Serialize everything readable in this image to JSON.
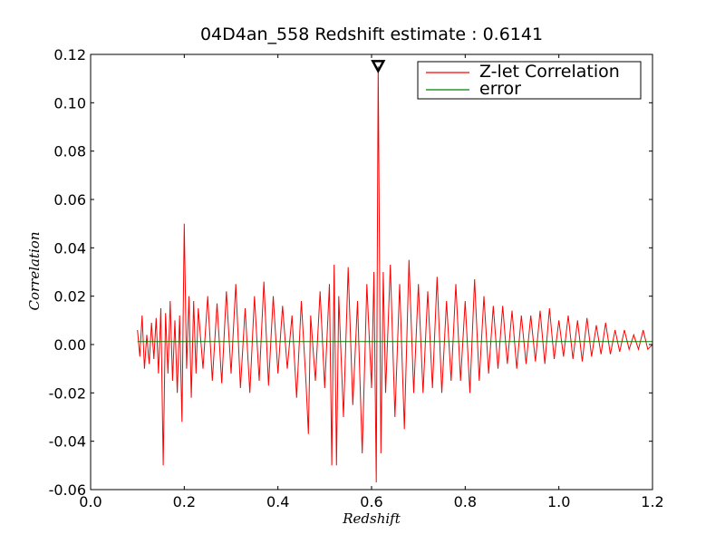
{
  "chart_data": {
    "type": "line",
    "title": "04D4an_558 Redshift estimate : 0.6141",
    "xlabel": "Redshift",
    "ylabel": "Correlation",
    "xlim": [
      0.0,
      1.2
    ],
    "ylim": [
      -0.06,
      0.12
    ],
    "xticks": [
      0.0,
      0.2,
      0.4,
      0.6,
      0.8,
      1.0,
      1.2
    ],
    "xtick_labels": [
      "0.0",
      "0.2",
      "0.4",
      "0.6",
      "0.8",
      "1.0",
      "1.2"
    ],
    "yticks": [
      -0.06,
      -0.04,
      -0.02,
      0.0,
      0.02,
      0.04,
      0.06,
      0.08,
      0.1,
      0.12
    ],
    "ytick_labels": [
      "-0.06",
      "-0.04",
      "-0.02",
      "0.00",
      "0.02",
      "0.04",
      "0.06",
      "0.08",
      "0.10",
      "0.12"
    ],
    "grid": false,
    "legend_position": "top-right",
    "series": [
      {
        "name": "Z-let Correlation",
        "color": "#ff0000",
        "x": [
          0.1,
          0.105,
          0.11,
          0.115,
          0.12,
          0.125,
          0.13,
          0.135,
          0.14,
          0.145,
          0.15,
          0.155,
          0.16,
          0.165,
          0.17,
          0.175,
          0.18,
          0.185,
          0.19,
          0.195,
          0.2,
          0.205,
          0.21,
          0.215,
          0.22,
          0.225,
          0.23,
          0.24,
          0.25,
          0.26,
          0.27,
          0.28,
          0.29,
          0.3,
          0.31,
          0.32,
          0.33,
          0.34,
          0.35,
          0.36,
          0.37,
          0.38,
          0.39,
          0.4,
          0.41,
          0.42,
          0.43,
          0.44,
          0.45,
          0.46,
          0.465,
          0.47,
          0.48,
          0.49,
          0.5,
          0.51,
          0.515,
          0.52,
          0.525,
          0.53,
          0.54,
          0.55,
          0.56,
          0.57,
          0.58,
          0.59,
          0.6,
          0.605,
          0.61,
          0.6141,
          0.62,
          0.625,
          0.63,
          0.64,
          0.65,
          0.66,
          0.67,
          0.68,
          0.69,
          0.7,
          0.71,
          0.72,
          0.73,
          0.74,
          0.75,
          0.76,
          0.77,
          0.78,
          0.79,
          0.8,
          0.81,
          0.82,
          0.83,
          0.84,
          0.85,
          0.86,
          0.87,
          0.88,
          0.89,
          0.9,
          0.91,
          0.92,
          0.93,
          0.94,
          0.95,
          0.96,
          0.97,
          0.98,
          0.99,
          1.0,
          1.01,
          1.02,
          1.03,
          1.04,
          1.05,
          1.06,
          1.07,
          1.08,
          1.09,
          1.1,
          1.11,
          1.12,
          1.13,
          1.14,
          1.15,
          1.16,
          1.17,
          1.18,
          1.19,
          1.2
        ],
        "values": [
          0.006,
          -0.005,
          0.012,
          -0.01,
          0.004,
          -0.008,
          0.009,
          -0.006,
          0.011,
          -0.012,
          0.015,
          -0.05,
          0.013,
          -0.012,
          0.018,
          -0.015,
          0.01,
          -0.02,
          0.012,
          -0.032,
          0.05,
          -0.01,
          0.02,
          -0.022,
          0.018,
          -0.012,
          0.015,
          -0.01,
          0.02,
          -0.015,
          0.017,
          -0.016,
          0.022,
          -0.012,
          0.025,
          -0.018,
          0.015,
          -0.02,
          0.02,
          -0.015,
          0.026,
          -0.017,
          0.02,
          -0.012,
          0.016,
          -0.01,
          0.012,
          -0.022,
          0.018,
          -0.016,
          -0.037,
          0.012,
          -0.015,
          0.022,
          -0.018,
          0.025,
          -0.05,
          0.033,
          -0.05,
          0.02,
          -0.03,
          0.032,
          -0.025,
          0.018,
          -0.045,
          0.025,
          -0.018,
          0.03,
          -0.057,
          0.115,
          -0.045,
          0.03,
          -0.02,
          0.033,
          -0.03,
          0.025,
          -0.035,
          0.035,
          -0.02,
          0.025,
          -0.02,
          0.022,
          -0.018,
          0.028,
          -0.02,
          0.018,
          -0.015,
          0.025,
          -0.015,
          0.018,
          -0.02,
          0.027,
          -0.015,
          0.02,
          -0.012,
          0.016,
          -0.01,
          0.016,
          -0.008,
          0.014,
          -0.01,
          0.012,
          -0.008,
          0.012,
          -0.007,
          0.014,
          -0.008,
          0.015,
          -0.006,
          0.01,
          -0.005,
          0.012,
          -0.006,
          0.01,
          -0.007,
          0.011,
          -0.005,
          0.008,
          -0.004,
          0.009,
          -0.004,
          0.006,
          -0.003,
          0.006,
          -0.002,
          0.004,
          -0.002,
          0.006,
          -0.002,
          0.0
        ]
      },
      {
        "name": "error",
        "color": "#008000",
        "x": [
          0.1,
          1.2
        ],
        "values": [
          0.0012,
          0.0012
        ]
      }
    ],
    "annotations": [
      {
        "type": "marker",
        "shape": "triangle-down",
        "x": 0.6141,
        "y": 0.115,
        "color": "#000000"
      }
    ]
  }
}
